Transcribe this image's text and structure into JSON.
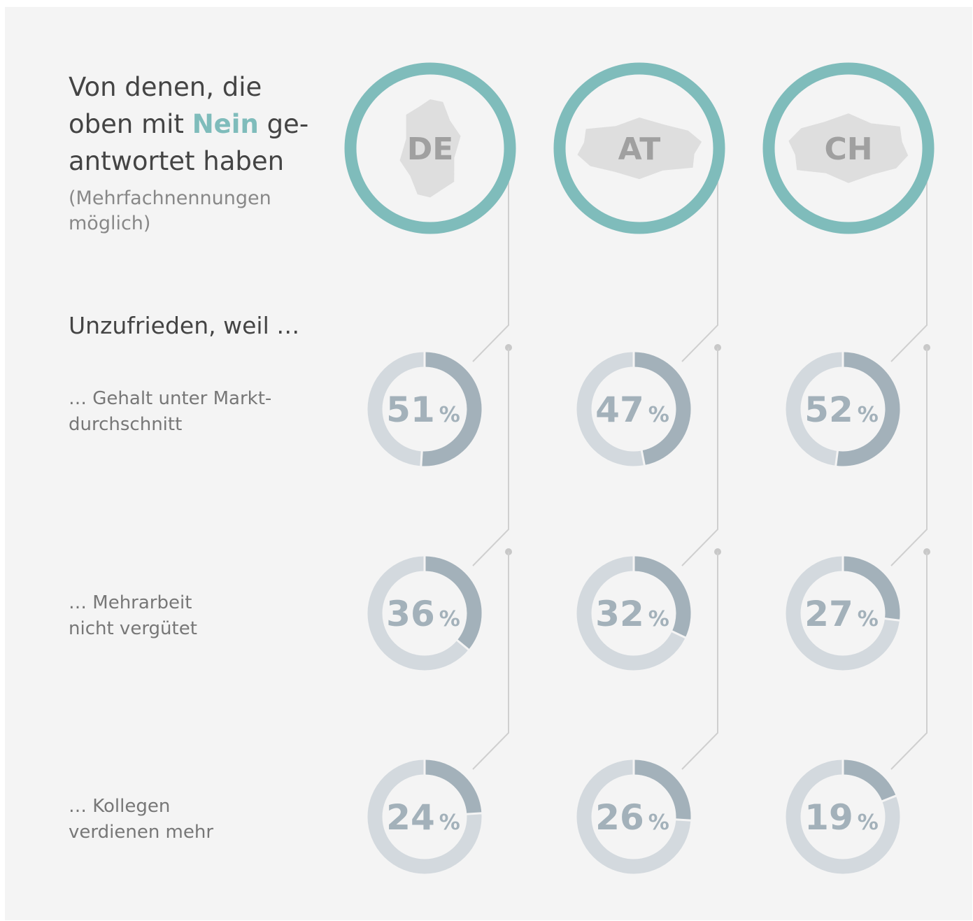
{
  "chart_data": {
    "type": "donut",
    "title": [
      "Von denen, die oben mit",
      "Nein",
      "ge-antwortet haben"
    ],
    "subtitle": "(Mehrfachnennungen möglich)",
    "section_label": "Unzufrieden, weil …",
    "categories": [
      "DE",
      "AT",
      "CH"
    ],
    "unit": "%",
    "highlight_color": "#7fbcbb",
    "ring_color": "#7fbcbb",
    "track_color": "#d3d9de",
    "series": [
      {
        "name": "… Gehalt unter Markt-durchschnitt",
        "color": "#a3b1ba",
        "values": [
          51,
          47,
          52
        ]
      },
      {
        "name": "… Mehrarbeit nicht vergütet",
        "color": "#a3b1ba",
        "values": [
          36,
          32,
          27
        ]
      },
      {
        "name": "… Kollegen verdienen mehr",
        "color": "#a3b1ba",
        "values": [
          24,
          26,
          19
        ]
      }
    ]
  }
}
